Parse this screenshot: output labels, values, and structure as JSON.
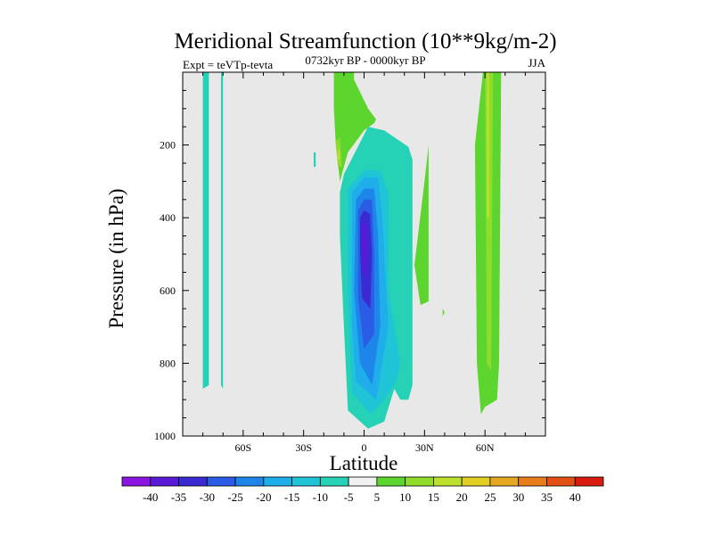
{
  "chart_data": {
    "type": "contour",
    "title": "Meridional Streamfunction (10**9kg/m-2)",
    "subtitle": "0732kyr BP - 0000kyr BP",
    "left_label": "Expt = teVTp-tevta",
    "right_label": "JJA",
    "xlabel": "Latitude",
    "ylabel": "Pressure (in hPa)",
    "xlim": [
      -90,
      90
    ],
    "ylim": [
      1000,
      0
    ],
    "x_ticks": [
      {
        "value": -60,
        "label": "60S"
      },
      {
        "value": -30,
        "label": "30S"
      },
      {
        "value": 0,
        "label": "0"
      },
      {
        "value": 30,
        "label": "30N"
      },
      {
        "value": 60,
        "label": "60N"
      }
    ],
    "y_ticks": [
      {
        "value": 200,
        "label": "200"
      },
      {
        "value": 400,
        "label": "400"
      },
      {
        "value": 600,
        "label": "600"
      },
      {
        "value": 800,
        "label": "800"
      },
      {
        "value": 1000,
        "label": "1000"
      }
    ],
    "background_color": "#e8e8e8",
    "colorbar": {
      "labels": [
        "-40",
        "-35",
        "-30",
        "-25",
        "-20",
        "-15",
        "-10",
        "-5",
        "5",
        "10",
        "15",
        "20",
        "25",
        "30",
        "35",
        "40"
      ],
      "colors": [
        "#8a14e0",
        "#5a19d6",
        "#3a2ad2",
        "#2a5ce6",
        "#1e86ea",
        "#1fadeb",
        "#1fc4d6",
        "#25d2b5",
        "#f0f0f0",
        "#5cd62e",
        "#8fdc2c",
        "#bde12a",
        "#e0cf22",
        "#e5a81e",
        "#e57e19",
        "#e25014",
        "#d81b0c"
      ]
    },
    "regions": [
      {
        "label": "-5",
        "color": "#25d2b5",
        "points": [
          [
            -80,
            0
          ],
          [
            -77,
            0
          ],
          [
            -77,
            860
          ],
          [
            -80,
            870
          ]
        ]
      },
      {
        "label": "-5",
        "color": "#25d2b5",
        "points": [
          [
            -71,
            0
          ],
          [
            -70,
            0
          ],
          [
            -70,
            870
          ],
          [
            -71,
            860
          ]
        ]
      },
      {
        "label": "-5",
        "color": "#25d2b5",
        "points": [
          [
            -25,
            220
          ],
          [
            -24,
            220
          ],
          [
            -24,
            260
          ],
          [
            -25,
            260
          ]
        ]
      },
      {
        "label": "-5",
        "color": "#25d2b5",
        "points": [
          [
            -10,
            280
          ],
          [
            2,
            150
          ],
          [
            10,
            160
          ],
          [
            22,
            205
          ],
          [
            24,
            240
          ],
          [
            24,
            860
          ],
          [
            22,
            900
          ],
          [
            18,
            900
          ],
          [
            15,
            870
          ],
          [
            10,
            960
          ],
          [
            2,
            980
          ],
          [
            -8,
            930
          ],
          [
            -10,
            700
          ],
          [
            -12,
            450
          ],
          [
            -12,
            330
          ]
        ]
      },
      {
        "label": "-10",
        "color": "#1fc4d6",
        "points": [
          [
            -8,
            320
          ],
          [
            0,
            270
          ],
          [
            8,
            270
          ],
          [
            12,
            330
          ],
          [
            12,
            600
          ],
          [
            18,
            800
          ],
          [
            16,
            850
          ],
          [
            10,
            900
          ],
          [
            3,
            940
          ],
          [
            -6,
            880
          ],
          [
            -8,
            600
          ]
        ]
      },
      {
        "label": "-15",
        "color": "#1fadeb",
        "points": [
          [
            -6,
            330
          ],
          [
            0,
            290
          ],
          [
            7,
            290
          ],
          [
            9,
            400
          ],
          [
            12,
            700
          ],
          [
            6,
            900
          ],
          [
            -4,
            850
          ],
          [
            -6,
            700
          ]
        ]
      },
      {
        "label": "-20",
        "color": "#1e86ea",
        "points": [
          [
            -4,
            350
          ],
          [
            0,
            320
          ],
          [
            5,
            320
          ],
          [
            7,
            450
          ],
          [
            8,
            700
          ],
          [
            4,
            860
          ],
          [
            -2,
            800
          ],
          [
            -5,
            600
          ]
        ]
      },
      {
        "label": "-25",
        "color": "#2a5ce6",
        "points": [
          [
            -3,
            380
          ],
          [
            0,
            350
          ],
          [
            4,
            350
          ],
          [
            5,
            500
          ],
          [
            5,
            720
          ],
          [
            0,
            760
          ],
          [
            -3,
            620
          ]
        ]
      },
      {
        "label": "-30",
        "color": "#3a2ad2",
        "points": [
          [
            -2,
            400
          ],
          [
            0,
            380
          ],
          [
            3,
            390
          ],
          [
            4,
            500
          ],
          [
            3,
            650
          ],
          [
            -1,
            620
          ],
          [
            -2,
            500
          ]
        ]
      },
      {
        "label": "-35",
        "color": "#5a19d6",
        "points": [
          [
            -1,
            420
          ],
          [
            1,
            410
          ],
          [
            2,
            470
          ],
          [
            1,
            560
          ],
          [
            0,
            560
          ],
          [
            -1,
            480
          ]
        ]
      },
      {
        "label": "5",
        "color": "#5cd62e",
        "points": [
          [
            -15,
            0
          ],
          [
            -5,
            0
          ],
          [
            -5,
            20
          ],
          [
            2,
            100
          ],
          [
            6,
            130
          ],
          [
            5,
            140
          ],
          [
            0,
            160
          ],
          [
            -8,
            220
          ],
          [
            -12,
            300
          ],
          [
            -14,
            200
          ],
          [
            -15,
            100
          ]
        ]
      },
      {
        "label": "10",
        "color": "#8fdc2c",
        "points": [
          [
            -14,
            190
          ],
          [
            -12,
            180
          ],
          [
            -11,
            260
          ],
          [
            -13,
            260
          ]
        ]
      },
      {
        "label": "15",
        "color": "#bde12a",
        "points": [
          [
            -13,
            220
          ],
          [
            -12,
            210
          ],
          [
            -12,
            240
          ],
          [
            -13,
            240
          ]
        ]
      },
      {
        "label": "5",
        "color": "#5cd62e",
        "points": [
          [
            25,
            530
          ],
          [
            30,
            300
          ],
          [
            32,
            200
          ],
          [
            32,
            630
          ],
          [
            28,
            640
          ]
        ]
      },
      {
        "label": "5",
        "color": "#5cd62e",
        "points": [
          [
            39,
            650
          ],
          [
            40,
            660
          ],
          [
            39,
            670
          ]
        ]
      },
      {
        "label": "5",
        "color": "#5cd62e",
        "points": [
          [
            55,
            200
          ],
          [
            59,
            0
          ],
          [
            68,
            0
          ],
          [
            67,
            800
          ],
          [
            66,
            900
          ],
          [
            60,
            920
          ],
          [
            58,
            940
          ],
          [
            56,
            800
          ]
        ]
      },
      {
        "label": "10",
        "color": "#8fdc2c",
        "points": [
          [
            60,
            0
          ],
          [
            64,
            0
          ],
          [
            63,
            820
          ],
          [
            61,
            800
          ]
        ]
      },
      {
        "label": "15",
        "color": "#bde12a",
        "points": [
          [
            61,
            0
          ],
          [
            62,
            0
          ],
          [
            62,
            400
          ],
          [
            61,
            400
          ]
        ]
      }
    ]
  }
}
